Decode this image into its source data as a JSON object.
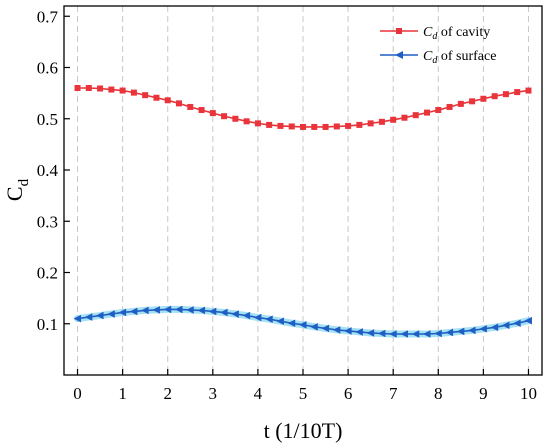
{
  "chart_data": {
    "type": "line",
    "xlabel": "t (1/10T)",
    "ylabel": {
      "main": "C",
      "sub": "d"
    },
    "xlim": [
      -0.3,
      10.3
    ],
    "ylim": [
      0.0,
      0.72
    ],
    "xticks": [
      0,
      1,
      2,
      3,
      4,
      5,
      6,
      7,
      8,
      9,
      10
    ],
    "yticks": [
      0.1,
      0.2,
      0.3,
      0.4,
      0.5,
      0.6,
      0.7
    ],
    "grid": "vertical-dashed",
    "legend": "top-right",
    "x": [
      0,
      0.25,
      0.5,
      0.75,
      1,
      1.25,
      1.5,
      1.75,
      2,
      2.25,
      2.5,
      2.75,
      3,
      3.25,
      3.5,
      3.75,
      4,
      4.25,
      4.5,
      4.75,
      5,
      5.25,
      5.5,
      5.75,
      6,
      6.25,
      6.5,
      6.75,
      7,
      7.25,
      7.5,
      7.75,
      8,
      8.25,
      8.5,
      8.75,
      9,
      9.25,
      9.5,
      9.75,
      10
    ],
    "series": [
      {
        "name": {
          "main": "C",
          "sub": "d",
          "rest": " of cavity"
        },
        "color": "#e8343a",
        "marker": "square",
        "values": [
          0.56,
          0.56,
          0.559,
          0.557,
          0.555,
          0.551,
          0.546,
          0.541,
          0.536,
          0.53,
          0.523,
          0.517,
          0.511,
          0.505,
          0.5,
          0.495,
          0.491,
          0.488,
          0.486,
          0.485,
          0.484,
          0.484,
          0.484,
          0.485,
          0.486,
          0.488,
          0.491,
          0.494,
          0.498,
          0.502,
          0.507,
          0.512,
          0.517,
          0.523,
          0.529,
          0.534,
          0.539,
          0.544,
          0.548,
          0.552,
          0.555
        ]
      },
      {
        "name": {
          "main": "C",
          "sub": "d",
          "rest": " of surface"
        },
        "color": "#1f5fc4",
        "band_color": "#8fd8f0",
        "marker": "left-triangle",
        "values": [
          0.11,
          0.113,
          0.116,
          0.119,
          0.122,
          0.124,
          0.126,
          0.127,
          0.128,
          0.128,
          0.127,
          0.126,
          0.124,
          0.122,
          0.119,
          0.116,
          0.112,
          0.109,
          0.105,
          0.101,
          0.098,
          0.094,
          0.091,
          0.088,
          0.086,
          0.084,
          0.082,
          0.081,
          0.08,
          0.08,
          0.08,
          0.08,
          0.081,
          0.083,
          0.085,
          0.087,
          0.09,
          0.093,
          0.097,
          0.101,
          0.106
        ]
      }
    ]
  }
}
